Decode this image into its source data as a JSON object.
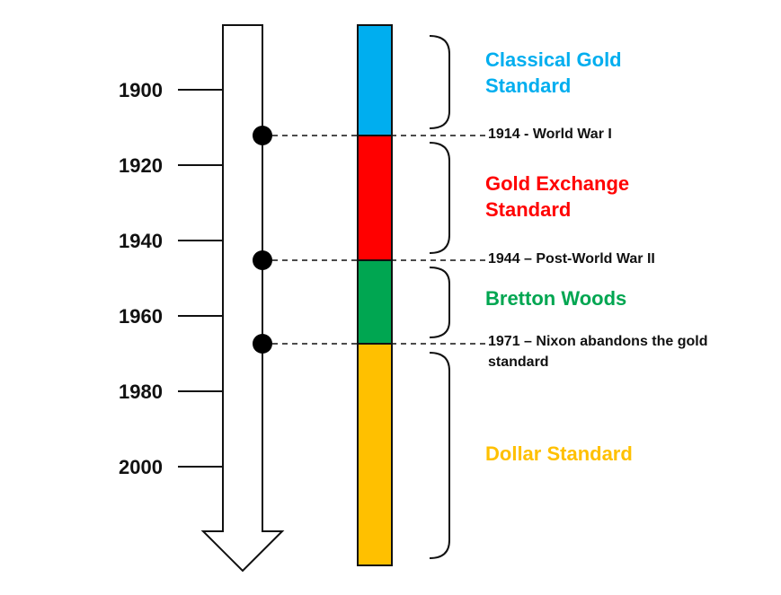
{
  "years": [
    "1900",
    "1920",
    "1940",
    "1960",
    "1980",
    "2000"
  ],
  "eras": [
    {
      "line1": "Classical Gold",
      "line2": "Standard",
      "color": "#00aeef",
      "start": 1883,
      "end": 1912
    },
    {
      "line1": "Gold Exchange",
      "line2": "Standard",
      "color": "#ff0000",
      "start": 1912,
      "end": 1945
    },
    {
      "line1": "Bretton Woods",
      "line2": "",
      "color": "#00a651",
      "start": 1945,
      "end": 1967
    },
    {
      "line1": "Dollar Standard",
      "line2": "",
      "color": "#ffc000",
      "start": 1967,
      "end": 2027
    }
  ],
  "events": [
    {
      "line1": "1914 - World War I",
      "line2": ""
    },
    {
      "line1": "1944 – Post-World War II",
      "line2": ""
    },
    {
      "line1": "1971 – Nixon abandons the gold",
      "line2": "standard"
    }
  ]
}
